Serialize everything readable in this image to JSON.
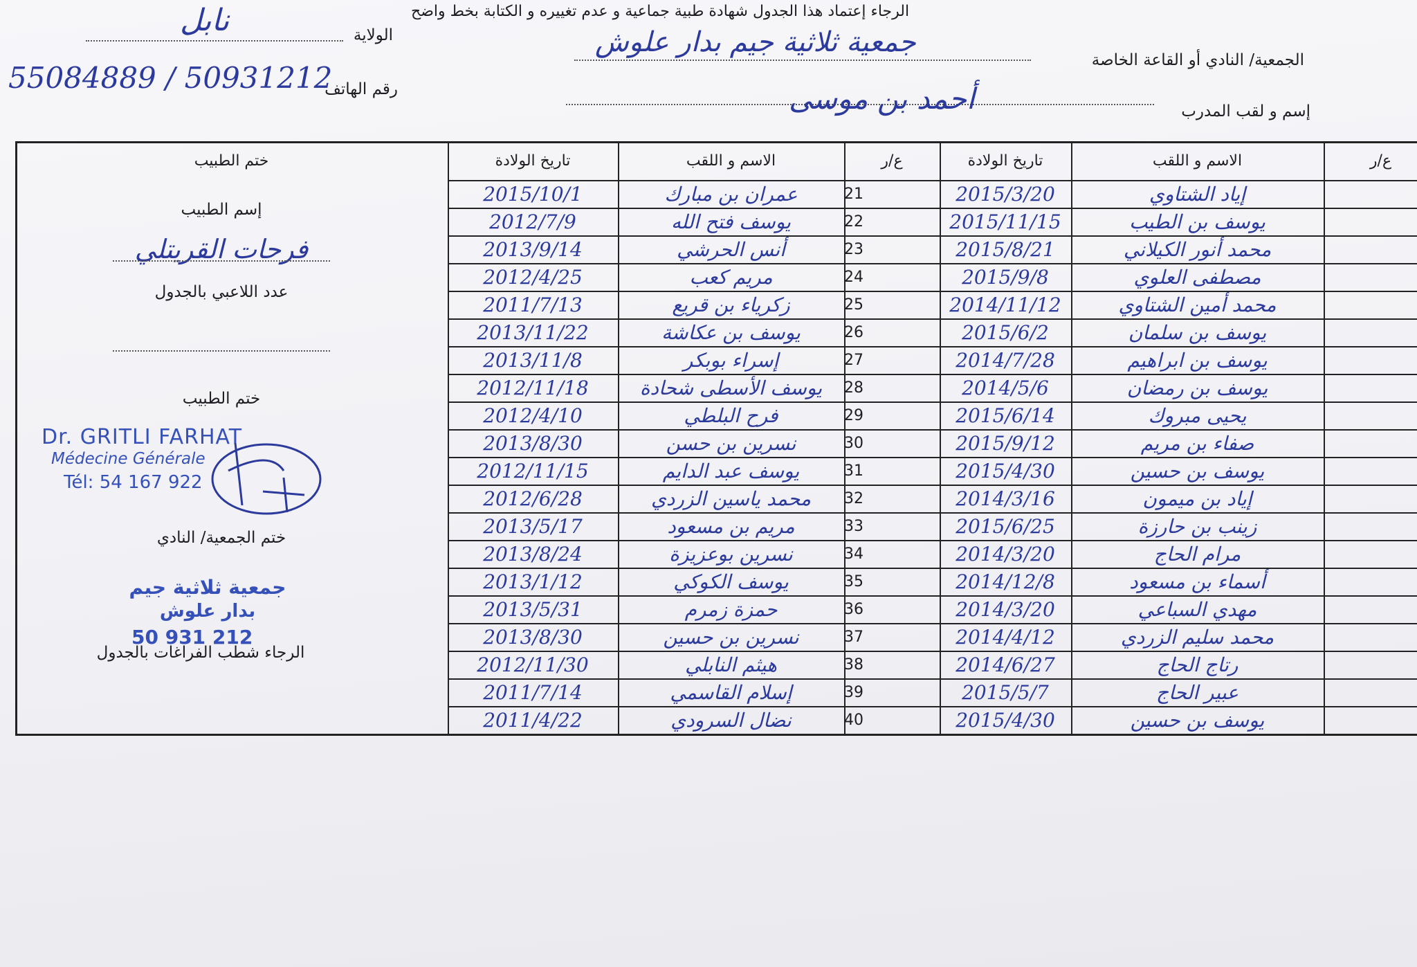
{
  "header": {
    "instruction": "الرجاء إعتماد هذا الجدول شهادة طبية جماعية  و عدم تغييره و الكتابة بخط واضح",
    "wilaya_label": "الولاية",
    "wilaya_value": "نابل",
    "club_label": "الجمعية/ النادي أو القاعة الخاصة",
    "club_value": "جمعية ثلاثية جيم بدار علوش",
    "phone_label": "رقم الهاتف",
    "phone_value": "55084889 / 50931212",
    "coach_label": "إسم و لقب المدرب",
    "coach_value": "أحمد بن موسى"
  },
  "table": {
    "headers": {
      "doctor_stamp": "ختم الطبيب",
      "birth_date": "تاريخ الولادة",
      "name": "الاسم و اللقب",
      "number": "ع/ر"
    },
    "rows_b": [
      [
        "21",
        "عمران بن مبارك",
        "2015/10/1"
      ],
      [
        "22",
        "يوسف فتح الله",
        "2012/7/9"
      ],
      [
        "23",
        "أنس الحرشي",
        "2013/9/14"
      ],
      [
        "24",
        "مريم كعب",
        "2012/4/25"
      ],
      [
        "25",
        "زكرياء بن قريع",
        "2011/7/13"
      ],
      [
        "26",
        "يوسف بن عكاشة",
        "2013/11/22"
      ],
      [
        "27",
        "إسراء بوبكر",
        "2013/11/8"
      ],
      [
        "28",
        "يوسف الأسطى شحادة",
        "2012/11/18"
      ],
      [
        "29",
        "فرح البلطي",
        "2012/4/10"
      ],
      [
        "30",
        "نسرين بن حسن",
        "2013/8/30"
      ],
      [
        "31",
        "يوسف عبد الدايم",
        "2012/11/15"
      ],
      [
        "32",
        "محمد ياسين الزردي",
        "2012/6/28"
      ],
      [
        "33",
        "مريم بن مسعود",
        "2013/5/17"
      ],
      [
        "34",
        "نسرين بوعزيزة",
        "2013/8/24"
      ],
      [
        "35",
        "يوسف الكوكي",
        "2013/1/12"
      ],
      [
        "36",
        "حمزة زمرم",
        "2013/5/31"
      ],
      [
        "37",
        "نسرين بن حسين",
        "2013/8/30"
      ],
      [
        "38",
        "هيثم النابلي",
        "2012/11/30"
      ],
      [
        "39",
        "إسلام القاسمي",
        "2011/7/14"
      ],
      [
        "40",
        "نضال السرودي",
        "2011/4/22"
      ]
    ],
    "rows_a": [
      [
        "إياد الشتاوي",
        "2015/3/20"
      ],
      [
        "يوسف بن الطيب",
        "2015/11/15"
      ],
      [
        "محمد أنور الكيلاني",
        "2015/8/21"
      ],
      [
        "مصطفى العلوي",
        "2015/9/8"
      ],
      [
        "محمد أمين الشتاوي",
        "2014/11/12"
      ],
      [
        "يوسف بن سلمان",
        "2015/6/2"
      ],
      [
        "يوسف بن ابراهيم",
        "2014/7/28"
      ],
      [
        "يوسف بن رمضان",
        "2014/5/6"
      ],
      [
        "يحيى مبروك",
        "2015/6/14"
      ],
      [
        "صفاء بن مريم",
        "2015/9/12"
      ],
      [
        "يوسف بن حسين",
        "2015/4/30"
      ],
      [
        "إياد بن ميمون",
        "2014/3/16"
      ],
      [
        "زينب بن حارزة",
        "2015/6/25"
      ],
      [
        "مرام الحاج",
        "2014/3/20"
      ],
      [
        "أسماء بن مسعود",
        "2014/12/8"
      ],
      [
        "مهدي السباعي",
        "2014/3/20"
      ],
      [
        "محمد سليم الزردي",
        "2014/4/12"
      ],
      [
        "رتاج الحاج",
        "2014/6/27"
      ],
      [
        "عبير الحاج",
        "2015/5/7"
      ],
      [
        "يوسف بن حسين",
        "2015/4/30"
      ]
    ]
  },
  "doctor_panel": {
    "doctor_name_label": "إسم الطبيب",
    "doctor_name_value": "فرحات القريتلي",
    "players_count_label": "عدد اللاعبي بالجدول",
    "doctor_stamp_label": "ختم الطبيب",
    "stamp_name": "Dr. GRITLI FARHAT",
    "stamp_specialty": "Médecine Générale",
    "stamp_phone": "Tél: 54 167 922",
    "club_stamp_label": "ختم الجمعية/ النادي",
    "club_stamp_line1": "جمعية ثلاثية جيم",
    "club_stamp_line2": "بدار علوش",
    "club_stamp_phone": "50 931 212",
    "footer_note": "الرجاء شطب الفراغات بالجدول"
  }
}
